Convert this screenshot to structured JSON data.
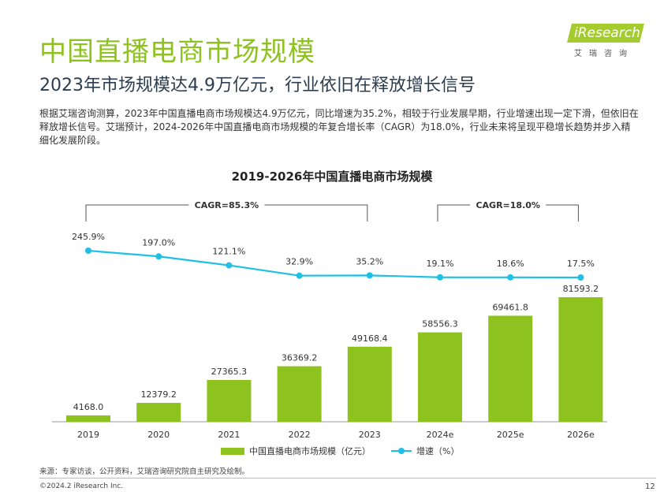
{
  "title": "中国直播电商市场规模",
  "subtitle": "2023年市场规模达4.9万亿元，行业依旧在释放增长信号",
  "logo": {
    "text": "iResearch",
    "cn": "艾瑞咨询"
  },
  "description": "根据艾瑞咨询测算，2023年中国直播电商市场规模达4.9万亿元，同比增速为35.2%，相较于行业发展早期，行业增速出现一定下滑，但依旧在释放增长信号。艾瑞预计，2024-2026年中国直播电商市场规模的年复合增长率（CAGR）为18.0%，行业未来将呈现平稳增长趋势并步入精细化发展阶段。",
  "chart_data": {
    "type": "bar",
    "title": "2019-2026年中国直播电商市场规模",
    "categories": [
      "2019",
      "2020",
      "2021",
      "2022",
      "2023",
      "2024e",
      "2025e",
      "2026e"
    ],
    "series": [
      {
        "name": "中国直播电商市场规模（亿元）",
        "type": "bar",
        "values": [
          4168.0,
          12379.2,
          27365.3,
          36369.2,
          49168.4,
          58556.3,
          69461.8,
          81593.2
        ],
        "labels": [
          "4168.0",
          "12379.2",
          "27365.3",
          "36369.2",
          "49168.4",
          "58556.3",
          "69461.8",
          "81593.2"
        ],
        "color": "#8dc21f"
      },
      {
        "name": "增速（%）",
        "type": "line",
        "values": [
          245.9,
          197.0,
          121.1,
          32.9,
          35.2,
          19.1,
          18.6,
          17.5
        ],
        "labels": [
          "245.9%",
          "197.0%",
          "121.1%",
          "32.9%",
          "35.2%",
          "19.1%",
          "18.6%",
          "17.5%"
        ],
        "color": "#1fbfe6"
      }
    ],
    "annotations": [
      {
        "text": "CAGR=85.3%",
        "from": "2019",
        "to": "2023"
      },
      {
        "text": "CAGR=18.0%",
        "from": "2024e",
        "to": "2026e"
      }
    ],
    "legend_position": "bottom",
    "grid": false
  },
  "legend": {
    "bar": "中国直播电商市场规模（亿元）",
    "line": "增速（%）"
  },
  "source": "来源：专家访谈，公开资料，艾瑞咨询研究院自主研究及绘制。",
  "copyright": "©2024.2 iResearch Inc.",
  "page_number": "12"
}
